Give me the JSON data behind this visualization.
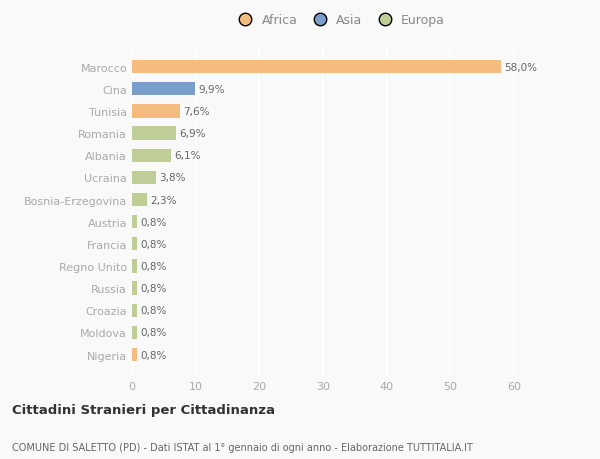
{
  "countries": [
    "Marocco",
    "Cina",
    "Tunisia",
    "Romania",
    "Albania",
    "Ucraina",
    "Bosnia-Erzegovina",
    "Austria",
    "Francia",
    "Regno Unito",
    "Russia",
    "Croazia",
    "Moldova",
    "Nigeria"
  ],
  "values": [
    58.0,
    9.9,
    7.6,
    6.9,
    6.1,
    3.8,
    2.3,
    0.8,
    0.8,
    0.8,
    0.8,
    0.8,
    0.8,
    0.8
  ],
  "labels": [
    "58,0%",
    "9,9%",
    "7,6%",
    "6,9%",
    "6,1%",
    "3,8%",
    "2,3%",
    "0,8%",
    "0,8%",
    "0,8%",
    "0,8%",
    "0,8%",
    "0,8%",
    "0,8%"
  ],
  "colors": [
    "#f5bc80",
    "#7a9ecb",
    "#f5bc80",
    "#bfce97",
    "#bfce97",
    "#bfce97",
    "#bfce97",
    "#bfce97",
    "#bfce97",
    "#bfce97",
    "#bfce97",
    "#bfce97",
    "#bfce97",
    "#f5bc80"
  ],
  "legend_labels": [
    "Africa",
    "Asia",
    "Europa"
  ],
  "legend_colors": [
    "#f5bc80",
    "#7a9ecb",
    "#bfce97"
  ],
  "title1": "Cittadini Stranieri per Cittadinanza",
  "title2": "COMUNE DI SALETTO (PD) - Dati ISTAT al 1° gennaio di ogni anno - Elaborazione TUTTITALIA.IT",
  "xlim": [
    0,
    65
  ],
  "xticks": [
    0,
    10,
    20,
    30,
    40,
    50,
    60
  ],
  "background_color": "#f9f9f9",
  "grid_color": "#ffffff",
  "bar_height": 0.6
}
